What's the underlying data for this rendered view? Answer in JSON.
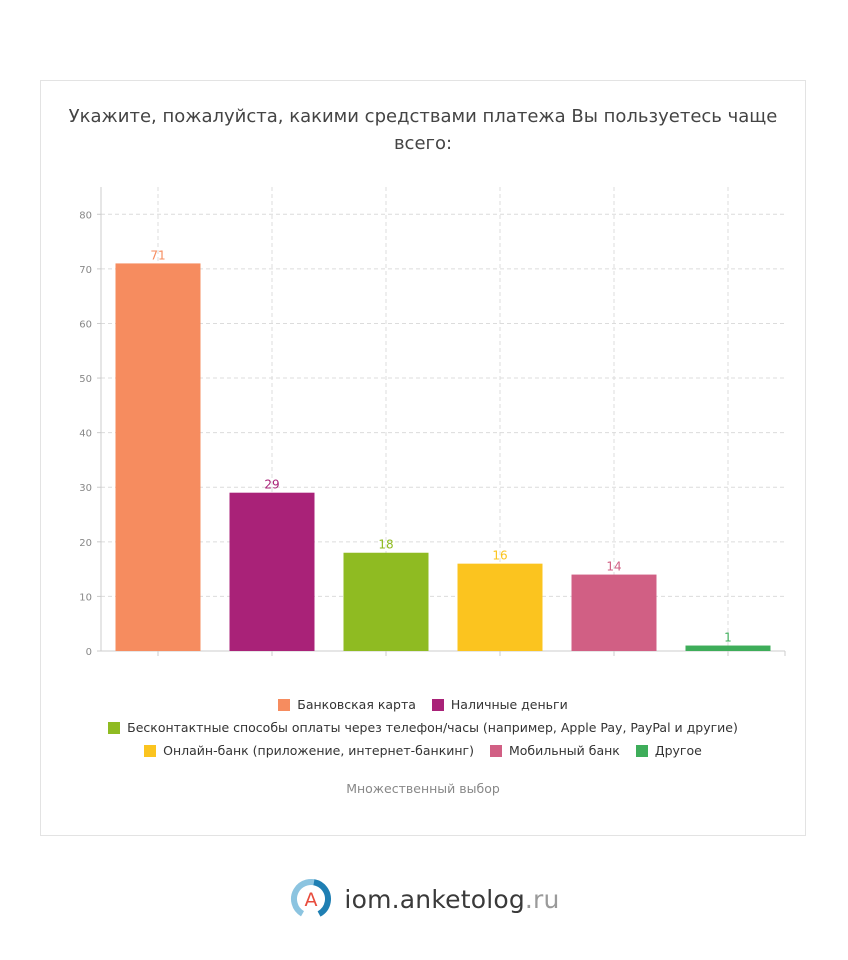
{
  "chart_data": {
    "type": "bar",
    "title": "Укажите, пожалуйста, какими средствами платежа Вы пользуетесь чаще всего:",
    "categories": [
      "Банковская карта",
      "Наличные деньги",
      "Бесконтактные способы оплаты через телефон/часы (например, Apple Pay, PayPal и другие)",
      "Онлайн-банк (приложение, интернет-банкинг)",
      "Мобильный банк",
      "Другое"
    ],
    "values": [
      71,
      29,
      18,
      16,
      14,
      1
    ],
    "colors": [
      "#f68c5f",
      "#a92278",
      "#8fbb22",
      "#fbc41f",
      "#d15f84",
      "#3ead5a"
    ],
    "ylim": [
      0,
      85
    ],
    "yticks": [
      0,
      10,
      20,
      30,
      40,
      50,
      60,
      70,
      80
    ],
    "grid": true,
    "legend_position": "bottom",
    "note": "Множественный выбор"
  },
  "brand": {
    "logo_letter": "A",
    "name": "iom.anketolog",
    "tld": ".ru"
  }
}
